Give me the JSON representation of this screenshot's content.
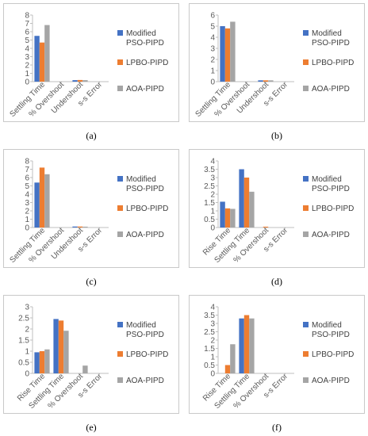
{
  "legend_colors": [
    "#4472C4",
    "#ED7D31",
    "#A5A5A5"
  ],
  "chart_data": [
    {
      "id": "a",
      "caption": "(a)",
      "type": "bar",
      "categories": [
        "Settling Time",
        "% Overshoot",
        "Undershoot",
        "s-s Error"
      ],
      "series": [
        {
          "name": "Modified PSO-PIPD",
          "values": [
            5.5,
            0,
            0.18,
            0
          ]
        },
        {
          "name": "LPBO-PIPD",
          "values": [
            4.7,
            0,
            0.2,
            0
          ]
        },
        {
          "name": "AOA-PIPD",
          "values": [
            6.8,
            0,
            0.18,
            0
          ]
        }
      ],
      "ylim": [
        0,
        8
      ],
      "yticks": [
        "0",
        "1",
        "2",
        "3",
        "4",
        "5",
        "6",
        "7",
        "8"
      ],
      "grid": false,
      "legend": "right"
    },
    {
      "id": "b",
      "caption": "(b)",
      "type": "bar",
      "categories": [
        "Settling Time",
        "% Overshoot",
        "Undershoot",
        "s-s Error"
      ],
      "series": [
        {
          "name": "Modified PSO-PIPD",
          "values": [
            5.0,
            0,
            0.12,
            0
          ]
        },
        {
          "name": "LPBO-PIPD",
          "values": [
            4.8,
            0,
            0.12,
            0
          ]
        },
        {
          "name": "AOA-PIPD",
          "values": [
            5.4,
            0,
            0.12,
            0
          ]
        }
      ],
      "ylim": [
        0,
        6
      ],
      "yticks": [
        "0",
        "1",
        "2",
        "3",
        "4",
        "5",
        "6"
      ],
      "grid": false,
      "legend": "right"
    },
    {
      "id": "c",
      "caption": "(c)",
      "type": "bar",
      "categories": [
        "Settling Time",
        "% Overshoot",
        "Undershoot",
        "s-s Error"
      ],
      "series": [
        {
          "name": "Modified PSO-PIPD",
          "values": [
            5.4,
            0,
            0.12,
            0
          ]
        },
        {
          "name": "LPBO-PIPD",
          "values": [
            7.2,
            0,
            0.12,
            0
          ]
        },
        {
          "name": "AOA-PIPD",
          "values": [
            6.4,
            0,
            0.1,
            0
          ]
        }
      ],
      "ylim": [
        0,
        8
      ],
      "yticks": [
        "0",
        "1",
        "2",
        "3",
        "4",
        "5",
        "6",
        "7",
        "8"
      ],
      "grid": false,
      "legend": "right"
    },
    {
      "id": "d",
      "caption": "(d)",
      "type": "bar",
      "categories": [
        "Rise Time",
        "Settling Time",
        "% Overshoot",
        "s-s Error"
      ],
      "series": [
        {
          "name": "Modified PSO-PIPD",
          "values": [
            1.55,
            3.5,
            0,
            0
          ]
        },
        {
          "name": "LPBO-PIPD",
          "values": [
            1.15,
            3.0,
            0.05,
            0
          ]
        },
        {
          "name": "AOA-PIPD",
          "values": [
            1.12,
            2.15,
            0,
            0
          ]
        }
      ],
      "ylim": [
        0,
        4
      ],
      "yticks": [
        "0",
        "0.5",
        "1",
        "1.5",
        "2",
        "2.5",
        "3",
        "3.5",
        "4"
      ],
      "grid": false,
      "legend": "right"
    },
    {
      "id": "e",
      "caption": "(e)",
      "type": "bar",
      "categories": [
        "Rise Time",
        "Settling Time",
        "% Overshoot",
        "s-s Error"
      ],
      "series": [
        {
          "name": "Modified PSO-PIPD",
          "values": [
            0.95,
            2.45,
            0,
            0
          ]
        },
        {
          "name": "LPBO-PIPD",
          "values": [
            1.0,
            2.38,
            0,
            0
          ]
        },
        {
          "name": "AOA-PIPD",
          "values": [
            1.08,
            1.92,
            0.35,
            0
          ]
        }
      ],
      "ylim": [
        0,
        3
      ],
      "yticks": [
        "0",
        "0.5",
        "1",
        "1.5",
        "2",
        "2.5",
        "3"
      ],
      "grid": false,
      "legend": "right"
    },
    {
      "id": "f",
      "caption": "(f)",
      "type": "bar",
      "categories": [
        "Rise Time",
        "Settling Time",
        "% Overshoot",
        "s-s Error"
      ],
      "series": [
        {
          "name": "Modified PSO-PIPD",
          "values": [
            0,
            3.3,
            0,
            0
          ]
        },
        {
          "name": "LPBO-PIPD",
          "values": [
            0.5,
            3.5,
            0,
            0
          ]
        },
        {
          "name": "AOA-PIPD",
          "values": [
            1.75,
            3.3,
            0,
            0
          ]
        }
      ],
      "ylim": [
        0,
        4
      ],
      "yticks": [
        "0",
        "0.5",
        "1",
        "1.5",
        "2",
        "2.5",
        "3",
        "3.5",
        "4"
      ],
      "grid": false,
      "legend": "right"
    }
  ]
}
